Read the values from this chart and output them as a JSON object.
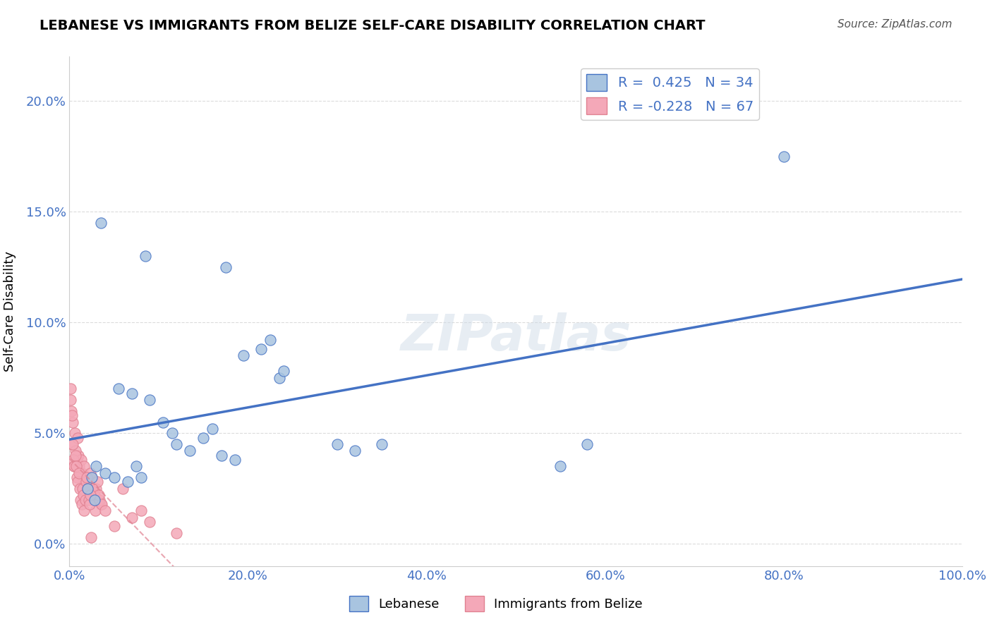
{
  "title": "LEBANESE VS IMMIGRANTS FROM BELIZE SELF-CARE DISABILITY CORRELATION CHART",
  "source": "Source: ZipAtlas.com",
  "xlabel": "",
  "ylabel": "Self-Care Disability",
  "legend_bottom": [
    "Lebanese",
    "Immigrants from Belize"
  ],
  "r_lebanese": 0.425,
  "n_lebanese": 34,
  "r_belize": -0.228,
  "n_belize": 67,
  "xlim": [
    0,
    100
  ],
  "ylim": [
    -1,
    22
  ],
  "xticks": [
    0,
    20,
    40,
    60,
    80,
    100
  ],
  "xtick_labels": [
    "0.0%",
    "20.0%",
    "40.0%",
    "60.0%",
    "80.0%",
    "100.0%"
  ],
  "ytick_positions": [
    0,
    5,
    10,
    15,
    20
  ],
  "ytick_labels": [
    "0.0%",
    "5.0%",
    "10.0%",
    "15.0%",
    "20.0%"
  ],
  "color_lebanese": "#a8c4e0",
  "color_belize": "#f4a8b8",
  "line_color_lebanese": "#4472c4",
  "line_color_belize": "#e08090",
  "watermark": "ZIPatlas",
  "lebanese_x": [
    3.5,
    8.5,
    17.5,
    19.5,
    21.5,
    22.5,
    23.5,
    24.0,
    5.5,
    7.0,
    9.0,
    10.5,
    11.5,
    12.0,
    13.5,
    15.0,
    16.0,
    17.0,
    18.5,
    3.0,
    4.0,
    5.0,
    6.5,
    7.5,
    8.0,
    30.0,
    32.0,
    35.0,
    55.0,
    58.0,
    80.0,
    2.0,
    2.5,
    2.8
  ],
  "lebanese_y": [
    14.5,
    13.0,
    12.5,
    8.5,
    8.8,
    9.2,
    7.5,
    7.8,
    7.0,
    6.8,
    6.5,
    5.5,
    5.0,
    4.5,
    4.2,
    4.8,
    5.2,
    4.0,
    3.8,
    3.5,
    3.2,
    3.0,
    2.8,
    3.5,
    3.0,
    4.5,
    4.2,
    4.5,
    3.5,
    4.5,
    17.5,
    2.5,
    3.0,
    2.0
  ],
  "belize_x": [
    0.5,
    0.8,
    1.0,
    1.2,
    1.5,
    1.8,
    2.0,
    2.2,
    2.5,
    2.8,
    3.0,
    3.2,
    3.5,
    0.3,
    0.6,
    0.9,
    1.1,
    1.4,
    1.7,
    2.1,
    2.4,
    2.7,
    3.1,
    3.4,
    0.4,
    0.7,
    1.3,
    1.6,
    1.9,
    2.3,
    2.6,
    2.9,
    3.3,
    3.6,
    4.0,
    5.0,
    6.0,
    7.0,
    8.0,
    9.0,
    0.2,
    0.1,
    0.15,
    0.25,
    0.35,
    0.45,
    0.55,
    0.65,
    0.75,
    0.85,
    0.95,
    1.05,
    1.15,
    1.25,
    1.35,
    1.45,
    1.55,
    1.65,
    1.75,
    1.85,
    1.95,
    2.05,
    2.15,
    2.25,
    2.35,
    12.0,
    2.45
  ],
  "belize_y": [
    3.5,
    3.8,
    4.0,
    3.2,
    3.0,
    2.8,
    2.5,
    2.8,
    3.0,
    2.2,
    2.5,
    2.0,
    1.8,
    4.5,
    5.0,
    4.8,
    3.5,
    3.2,
    2.8,
    3.0,
    2.5,
    2.2,
    2.8,
    2.0,
    5.5,
    4.2,
    3.8,
    3.5,
    2.8,
    3.2,
    2.5,
    1.5,
    2.2,
    1.8,
    1.5,
    0.8,
    2.5,
    1.2,
    1.5,
    1.0,
    6.0,
    7.0,
    6.5,
    5.8,
    4.5,
    3.8,
    3.5,
    4.0,
    3.5,
    3.0,
    2.8,
    3.2,
    2.5,
    2.0,
    1.8,
    2.5,
    2.2,
    1.5,
    2.0,
    2.8,
    3.0,
    2.5,
    2.0,
    1.8,
    2.2,
    0.5,
    0.3
  ]
}
